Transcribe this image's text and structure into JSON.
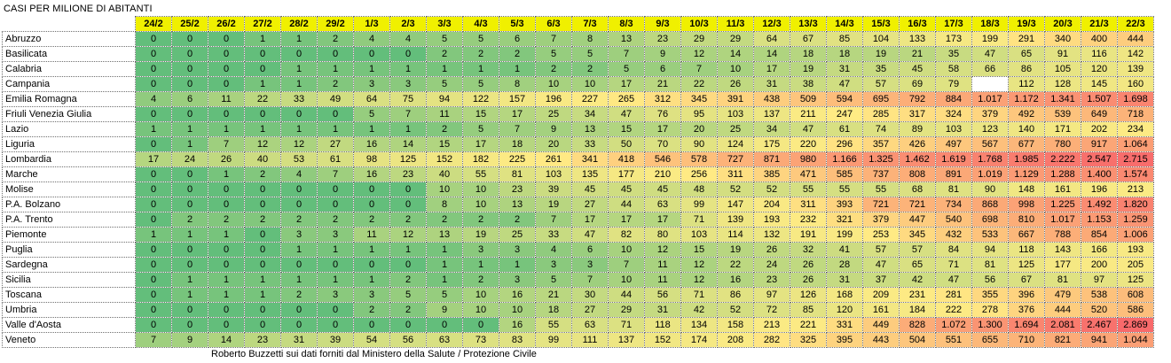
{
  "title": "CASI PER MILIONE DI ABITANTI",
  "credit": "Roberto Buzzetti sui dati forniti dal Ministero della Salute / Protezione Civile",
  "colors": {
    "header_fill": "#f0f000",
    "scale_low": "#63be7b",
    "scale_mid": "#ffeb84",
    "scale_high": "#f8696b",
    "empty_cell": "#ffffff"
  },
  "table": {
    "columns": [
      "24/2",
      "25/2",
      "26/2",
      "27/2",
      "28/2",
      "29/2",
      "1/3",
      "2/3",
      "3/3",
      "4/3",
      "5/3",
      "6/3",
      "7/3",
      "8/3",
      "9/3",
      "10/3",
      "11/3",
      "12/3",
      "13/3",
      "14/3",
      "15/3",
      "16/3",
      "17/3",
      "18/3",
      "19/3",
      "20/3",
      "21/3",
      "22/3"
    ],
    "rows": [
      {
        "region": "Abruzzo",
        "values": [
          "0",
          "0",
          "0",
          "1",
          "1",
          "2",
          "4",
          "4",
          "5",
          "5",
          "6",
          "7",
          "8",
          "13",
          "23",
          "29",
          "29",
          "64",
          "67",
          "85",
          "104",
          "133",
          "173",
          "199",
          "291",
          "340",
          "400",
          "444"
        ]
      },
      {
        "region": "Basilicata",
        "values": [
          "0",
          "0",
          "0",
          "0",
          "0",
          "0",
          "0",
          "0",
          "2",
          "2",
          "2",
          "5",
          "5",
          "7",
          "9",
          "12",
          "14",
          "14",
          "18",
          "18",
          "19",
          "21",
          "35",
          "47",
          "65",
          "91",
          "116",
          "142"
        ]
      },
      {
        "region": "Calabria",
        "values": [
          "0",
          "0",
          "0",
          "0",
          "1",
          "1",
          "1",
          "1",
          "1",
          "1",
          "1",
          "2",
          "2",
          "5",
          "6",
          "7",
          "10",
          "17",
          "19",
          "31",
          "35",
          "45",
          "58",
          "66",
          "86",
          "105",
          "120",
          "139"
        ]
      },
      {
        "region": "Campania",
        "values": [
          "0",
          "0",
          "0",
          "1",
          "1",
          "2",
          "3",
          "3",
          "5",
          "5",
          "8",
          "10",
          "10",
          "17",
          "21",
          "22",
          "26",
          "31",
          "38",
          "47",
          "57",
          "69",
          "79",
          "",
          "112",
          "128",
          "145",
          "160"
        ]
      },
      {
        "region": "Emilia Romagna",
        "values": [
          "4",
          "6",
          "11",
          "22",
          "33",
          "49",
          "64",
          "75",
          "94",
          "122",
          "157",
          "196",
          "227",
          "265",
          "312",
          "345",
          "391",
          "438",
          "509",
          "594",
          "695",
          "792",
          "884",
          "1.017",
          "1.172",
          "1.341",
          "1.507",
          "1.698"
        ]
      },
      {
        "region": "Friuli Venezia Giulia",
        "values": [
          "0",
          "0",
          "0",
          "0",
          "0",
          "0",
          "5",
          "7",
          "11",
          "15",
          "17",
          "25",
          "34",
          "47",
          "76",
          "95",
          "103",
          "137",
          "211",
          "247",
          "285",
          "317",
          "324",
          "379",
          "492",
          "539",
          "649",
          "718"
        ]
      },
      {
        "region": "Lazio",
        "values": [
          "1",
          "1",
          "1",
          "1",
          "1",
          "1",
          "1",
          "1",
          "2",
          "5",
          "7",
          "9",
          "13",
          "15",
          "17",
          "20",
          "25",
          "34",
          "47",
          "61",
          "74",
          "89",
          "103",
          "123",
          "140",
          "171",
          "202",
          "234"
        ]
      },
      {
        "region": "Liguria",
        "values": [
          "0",
          "1",
          "7",
          "12",
          "12",
          "27",
          "16",
          "14",
          "15",
          "17",
          "18",
          "20",
          "33",
          "50",
          "70",
          "90",
          "124",
          "175",
          "220",
          "296",
          "357",
          "426",
          "497",
          "567",
          "677",
          "780",
          "917",
          "1.064"
        ]
      },
      {
        "region": "Lombardia",
        "values": [
          "17",
          "24",
          "26",
          "40",
          "53",
          "61",
          "98",
          "125",
          "152",
          "182",
          "225",
          "261",
          "341",
          "418",
          "546",
          "578",
          "727",
          "871",
          "980",
          "1.166",
          "1.325",
          "1.462",
          "1.619",
          "1.768",
          "1.985",
          "2.222",
          "2.547",
          "2.715"
        ]
      },
      {
        "region": "Marche",
        "values": [
          "0",
          "0",
          "1",
          "2",
          "4",
          "7",
          "16",
          "23",
          "40",
          "55",
          "81",
          "103",
          "135",
          "177",
          "210",
          "256",
          "311",
          "385",
          "471",
          "585",
          "737",
          "808",
          "891",
          "1.019",
          "1.129",
          "1.288",
          "1.400",
          "1.574"
        ]
      },
      {
        "region": "Molise",
        "values": [
          "0",
          "0",
          "0",
          "0",
          "0",
          "0",
          "0",
          "0",
          "10",
          "10",
          "23",
          "39",
          "45",
          "45",
          "45",
          "48",
          "52",
          "52",
          "55",
          "55",
          "55",
          "68",
          "81",
          "90",
          "148",
          "161",
          "196",
          "213"
        ]
      },
      {
        "region": "P.A. Bolzano",
        "values": [
          "0",
          "0",
          "0",
          "0",
          "0",
          "0",
          "0",
          "0",
          "8",
          "10",
          "13",
          "19",
          "27",
          "44",
          "63",
          "99",
          "147",
          "204",
          "311",
          "393",
          "721",
          "721",
          "734",
          "868",
          "998",
          "1.225",
          "1.492",
          "1.820"
        ]
      },
      {
        "region": "P.A. Trento",
        "values": [
          "0",
          "2",
          "2",
          "2",
          "2",
          "2",
          "2",
          "2",
          "2",
          "2",
          "2",
          "7",
          "17",
          "17",
          "17",
          "71",
          "139",
          "193",
          "232",
          "321",
          "379",
          "447",
          "540",
          "698",
          "810",
          "1.017",
          "1.153",
          "1.259"
        ]
      },
      {
        "region": "Piemonte",
        "values": [
          "1",
          "1",
          "1",
          "0",
          "3",
          "3",
          "11",
          "12",
          "13",
          "19",
          "25",
          "33",
          "47",
          "82",
          "80",
          "103",
          "114",
          "132",
          "191",
          "199",
          "253",
          "345",
          "432",
          "533",
          "667",
          "788",
          "854",
          "1.006"
        ]
      },
      {
        "region": "Puglia",
        "values": [
          "0",
          "0",
          "0",
          "0",
          "1",
          "1",
          "1",
          "1",
          "1",
          "3",
          "3",
          "4",
          "6",
          "10",
          "12",
          "15",
          "19",
          "26",
          "32",
          "41",
          "57",
          "57",
          "84",
          "94",
          "118",
          "143",
          "166",
          "193"
        ]
      },
      {
        "region": "Sardegna",
        "values": [
          "0",
          "0",
          "0",
          "0",
          "0",
          "0",
          "0",
          "0",
          "1",
          "1",
          "1",
          "3",
          "3",
          "7",
          "11",
          "12",
          "22",
          "24",
          "26",
          "28",
          "47",
          "65",
          "71",
          "81",
          "125",
          "177",
          "200",
          "205"
        ]
      },
      {
        "region": "Sicilia",
        "values": [
          "0",
          "1",
          "1",
          "1",
          "1",
          "1",
          "1",
          "2",
          "1",
          "2",
          "3",
          "5",
          "7",
          "10",
          "11",
          "12",
          "16",
          "23",
          "26",
          "31",
          "37",
          "42",
          "47",
          "56",
          "67",
          "81",
          "97",
          "125"
        ]
      },
      {
        "region": "Toscana",
        "values": [
          "0",
          "1",
          "1",
          "1",
          "2",
          "3",
          "3",
          "5",
          "5",
          "10",
          "16",
          "21",
          "30",
          "44",
          "56",
          "71",
          "86",
          "97",
          "126",
          "168",
          "209",
          "231",
          "281",
          "355",
          "396",
          "479",
          "538",
          "608"
        ]
      },
      {
        "region": "Umbria",
        "values": [
          "0",
          "0",
          "0",
          "0",
          "0",
          "0",
          "2",
          "2",
          "9",
          "10",
          "10",
          "18",
          "27",
          "29",
          "31",
          "42",
          "52",
          "72",
          "85",
          "120",
          "161",
          "184",
          "222",
          "278",
          "376",
          "444",
          "520",
          "586"
        ]
      },
      {
        "region": "Valle d'Aosta",
        "values": [
          "0",
          "0",
          "0",
          "0",
          "0",
          "0",
          "0",
          "0",
          "0",
          "0",
          "16",
          "55",
          "63",
          "71",
          "118",
          "134",
          "158",
          "213",
          "221",
          "331",
          "449",
          "828",
          "1.072",
          "1.300",
          "1.694",
          "2.081",
          "2.467",
          "2.869"
        ]
      },
      {
        "region": "Veneto",
        "values": [
          "7",
          "9",
          "14",
          "23",
          "31",
          "39",
          "54",
          "56",
          "63",
          "73",
          "83",
          "99",
          "111",
          "137",
          "152",
          "174",
          "208",
          "282",
          "325",
          "395",
          "443",
          "504",
          "551",
          "655",
          "710",
          "821",
          "941",
          "1.044"
        ]
      }
    ]
  }
}
